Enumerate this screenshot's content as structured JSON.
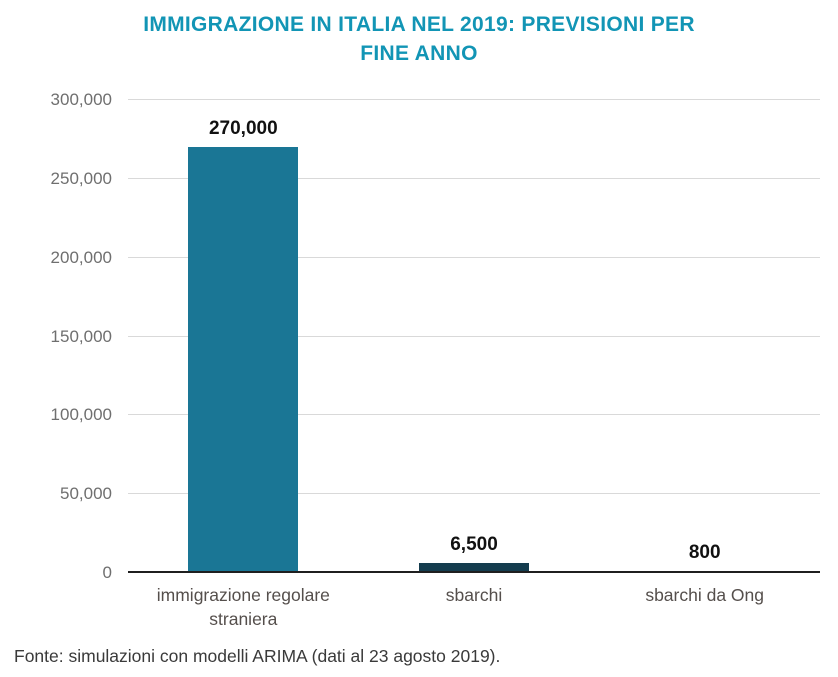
{
  "title": {
    "line1": "IMMIGRAZIONE IN ITALIA NEL 2019: PREVISIONI PER",
    "line2": "FINE ANNO",
    "accent_color": "#1295b5"
  },
  "footer": {
    "text": "Fonte: simulazioni con modelli ARIMA (dati al 23 agosto 2019)."
  },
  "chart_data": {
    "type": "bar",
    "title": "IMMIGRAZIONE IN ITALIA NEL 2019: PREVISIONI PER FINE ANNO",
    "categories": [
      "immigrazione regolare straniera",
      "sbarchi",
      "sbarchi da Ong"
    ],
    "values": [
      270000,
      6500,
      800
    ],
    "value_labels": [
      "270,000",
      "6,500",
      "800"
    ],
    "bar_colors": [
      "#1a7695",
      "#143c4e",
      "#7fbcd9"
    ],
    "xlabel": "",
    "ylabel": "",
    "ylim": [
      0,
      300000
    ],
    "yticks": [
      0,
      50000,
      100000,
      150000,
      200000,
      250000,
      300000
    ],
    "ytick_labels": [
      "0",
      "50,000",
      "100,000",
      "150,000",
      "200,000",
      "250,000",
      "300,000"
    ],
    "grid": true,
    "legend": false
  }
}
